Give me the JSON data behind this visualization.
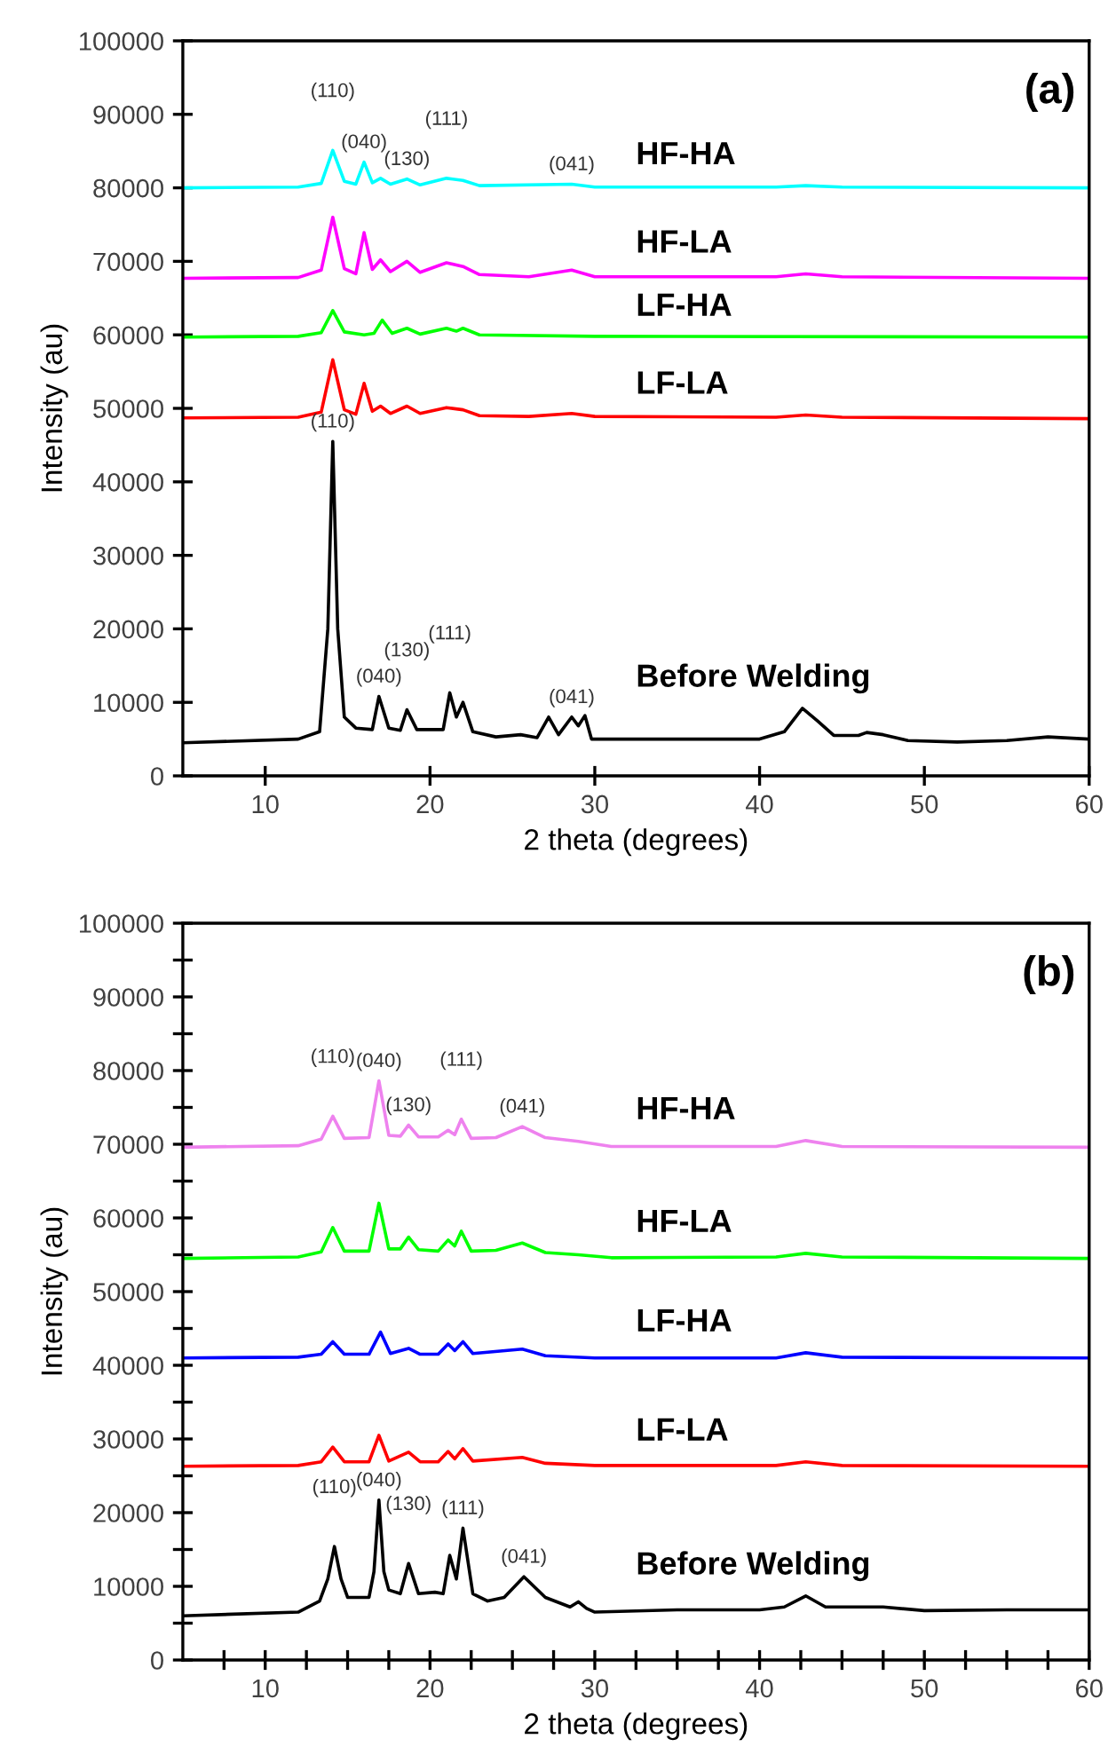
{
  "chart_data": [
    {
      "type": "line",
      "title": "(a)",
      "xlabel": "2 theta (degrees)",
      "ylabel": "Intensity (au)",
      "xlim": [
        5,
        60
      ],
      "ylim": [
        0,
        100000
      ],
      "xticks": [
        10,
        20,
        30,
        40,
        50,
        60
      ],
      "yticks": [
        0,
        10000,
        20000,
        30000,
        40000,
        50000,
        60000,
        70000,
        80000,
        90000,
        100000
      ],
      "grid": false,
      "legend": false,
      "marker": "none",
      "line_style": "solid",
      "series": [
        {
          "name": "HF-HA",
          "color": "#00ffff",
          "x": [
            5,
            12,
            13.4,
            14.1,
            14.8,
            15.5,
            16.0,
            16.5,
            17.0,
            17.6,
            18.6,
            19.4,
            21.0,
            22.0,
            23.0,
            28.6,
            30,
            41,
            42.8,
            45,
            60
          ],
          "values": [
            80000,
            80100,
            80600,
            85100,
            80900,
            80500,
            83500,
            80700,
            81300,
            80500,
            81200,
            80400,
            81300,
            81000,
            80300,
            80500,
            80100,
            80100,
            80300,
            80100,
            80000
          ]
        },
        {
          "name": "HF-LA",
          "color": "#ff00ff",
          "x": [
            5,
            12,
            13.4,
            14.1,
            14.8,
            15.5,
            16.0,
            16.5,
            17.0,
            17.6,
            18.6,
            19.4,
            21.0,
            22.0,
            23.0,
            26,
            28.6,
            30,
            41,
            42.8,
            45,
            60
          ],
          "values": [
            67700,
            67800,
            68800,
            76000,
            69000,
            68300,
            73900,
            68900,
            70200,
            68600,
            70000,
            68500,
            69800,
            69300,
            68200,
            67900,
            68800,
            67900,
            67900,
            68300,
            67900,
            67700
          ]
        },
        {
          "name": "LF-HA",
          "color": "#00ff00",
          "x": [
            5,
            12,
            13.4,
            14.1,
            14.8,
            16.0,
            16.6,
            17.1,
            17.7,
            18.6,
            19.4,
            21.0,
            21.6,
            22.0,
            23.0,
            30,
            60
          ],
          "values": [
            59700,
            59800,
            60300,
            63300,
            60400,
            60000,
            60200,
            62000,
            60200,
            60900,
            60100,
            60900,
            60500,
            60900,
            60000,
            59800,
            59700
          ]
        },
        {
          "name": "LF-LA",
          "color": "#ff0000",
          "x": [
            5,
            12,
            13.4,
            14.1,
            14.8,
            15.5,
            16.0,
            16.5,
            17.0,
            17.6,
            18.6,
            19.4,
            21.0,
            22.0,
            23.0,
            26,
            28.6,
            30,
            41,
            42.8,
            45,
            60
          ],
          "values": [
            48700,
            48800,
            49500,
            56600,
            49800,
            49200,
            53400,
            49600,
            50300,
            49300,
            50300,
            49300,
            50100,
            49800,
            49000,
            48900,
            49300,
            48900,
            48800,
            49100,
            48800,
            48600
          ]
        },
        {
          "name": "Before Welding",
          "color": "#000000",
          "x": [
            5,
            12,
            13.3,
            13.8,
            14.1,
            14.4,
            14.8,
            15.5,
            16.5,
            16.9,
            17.5,
            18.2,
            18.6,
            19.2,
            20.8,
            21.2,
            21.6,
            22.0,
            22.6,
            24,
            25.5,
            26.5,
            27.2,
            27.8,
            28.6,
            29.0,
            29.4,
            29.8,
            35,
            40,
            41.5,
            42.6,
            43.5,
            44.5,
            46,
            46.5,
            47.5,
            49,
            52,
            55,
            57.5,
            60
          ],
          "values": [
            4500,
            5000,
            6000,
            20000,
            45500,
            20000,
            8000,
            6500,
            6300,
            10800,
            6500,
            6200,
            9000,
            6300,
            6300,
            11300,
            8000,
            10000,
            6000,
            5300,
            5600,
            5200,
            8000,
            5600,
            8000,
            6800,
            8200,
            5000,
            5000,
            5000,
            6000,
            9200,
            7500,
            5500,
            5500,
            5900,
            5600,
            4800,
            4600,
            4800,
            5300,
            5000
          ]
        }
      ],
      "annotations": [
        {
          "text": "(040)",
          "x": 16.0,
          "y": 83500
        },
        {
          "text": "(110)",
          "x": 14.1,
          "y": 85100
        },
        {
          "text": "(130)",
          "x": 18.6,
          "y": 81200
        },
        {
          "text": "(111)",
          "x": 21.0,
          "y": 81300
        },
        {
          "text": "(041)",
          "x": 28.6,
          "y": 80500
        },
        {
          "text": "(040)",
          "x": 16.9,
          "y": 10800
        },
        {
          "text": "(130)",
          "x": 18.6,
          "y": 9000
        },
        {
          "text": "(110)",
          "x": 14.1,
          "y": 45500
        },
        {
          "text": "(111)",
          "x": 21.2,
          "y": 11300
        },
        {
          "text": "(041)",
          "x": 28.6,
          "y": 8000
        }
      ]
    },
    {
      "type": "line",
      "title": "(b)",
      "xlabel": "2 theta (degrees)",
      "ylabel": "Intensity (au)",
      "xlim": [
        5,
        60
      ],
      "ylim": [
        0,
        100000
      ],
      "xticks": [
        {
          "value": 7.5,
          "label": null
        },
        10,
        {
          "value": 12.5,
          "label": null
        },
        {
          "value": 15,
          "label": null
        },
        {
          "value": 17.5,
          "label": null
        },
        20,
        {
          "value": 22.5,
          "label": null
        },
        {
          "value": 25,
          "label": null
        },
        {
          "value": 27.5,
          "label": null
        },
        30,
        {
          "value": 32.5,
          "label": null
        },
        {
          "value": 35,
          "label": null
        },
        {
          "value": 37.5,
          "label": null
        },
        40,
        {
          "value": 42.5,
          "label": null
        },
        {
          "value": 45,
          "label": null
        },
        {
          "value": 47.5,
          "label": null
        },
        50,
        {
          "value": 52.5,
          "label": null
        },
        {
          "value": 55,
          "label": null
        },
        {
          "value": 57.5,
          "label": null
        },
        60
      ],
      "yticks": [
        0,
        {
          "value": 5000,
          "label": null
        },
        10000,
        {
          "value": 15000,
          "label": null
        },
        20000,
        {
          "value": 25000,
          "label": null
        },
        30000,
        {
          "value": 35000,
          "label": null
        },
        40000,
        {
          "value": 45000,
          "label": null
        },
        50000,
        {
          "value": 55000,
          "label": null
        },
        60000,
        {
          "value": 65000,
          "label": null
        },
        70000,
        {
          "value": 75000,
          "label": null
        },
        80000,
        {
          "value": 85000,
          "label": null
        },
        90000,
        {
          "value": 95000,
          "label": null
        },
        100000
      ],
      "grid": false,
      "legend": false,
      "marker": "none",
      "line_style": "solid",
      "series": [
        {
          "name": "HF-HA",
          "color": "#ee82ee",
          "x": [
            5,
            12,
            13.4,
            14.1,
            14.8,
            16.3,
            16.9,
            17.5,
            18.2,
            18.7,
            19.3,
            20.5,
            21.1,
            21.5,
            21.9,
            22.5,
            24,
            25.6,
            27,
            29,
            31,
            41,
            42.8,
            45,
            60
          ],
          "values": [
            69600,
            69800,
            70700,
            73800,
            70800,
            70900,
            78600,
            71200,
            71100,
            72600,
            71000,
            71000,
            71900,
            71300,
            73400,
            70800,
            70900,
            72400,
            70900,
            70400,
            69700,
            69700,
            70500,
            69700,
            69600
          ]
        },
        {
          "name": "HF-LA",
          "color": "#00ff00",
          "x": [
            5,
            12,
            13.4,
            14.1,
            14.8,
            16.3,
            16.9,
            17.5,
            18.2,
            18.7,
            19.3,
            20.5,
            21.1,
            21.5,
            21.9,
            22.5,
            24,
            25.6,
            27,
            29,
            31,
            41,
            42.8,
            45,
            60
          ],
          "values": [
            54500,
            54700,
            55400,
            58700,
            55500,
            55500,
            62000,
            55800,
            55800,
            57400,
            55700,
            55500,
            57000,
            56200,
            58200,
            55500,
            55600,
            56600,
            55300,
            55000,
            54600,
            54700,
            55200,
            54700,
            54500
          ]
        },
        {
          "name": "LF-HA",
          "color": "#0000ff",
          "x": [
            5,
            12,
            13.4,
            14.1,
            14.8,
            16.3,
            17.0,
            17.6,
            18.7,
            19.4,
            20.5,
            21.1,
            21.5,
            22.0,
            22.6,
            25.6,
            27,
            30,
            41,
            42.8,
            45,
            60
          ],
          "values": [
            41000,
            41100,
            41500,
            43200,
            41500,
            41500,
            44500,
            41600,
            42300,
            41500,
            41500,
            42900,
            42000,
            43200,
            41600,
            42200,
            41300,
            41000,
            41000,
            41700,
            41100,
            41000
          ]
        },
        {
          "name": "LF-LA",
          "color": "#ff0000",
          "x": [
            5,
            12,
            13.4,
            14.1,
            14.8,
            16.3,
            16.9,
            17.5,
            18.7,
            19.4,
            20.5,
            21.1,
            21.5,
            22.0,
            22.6,
            25.6,
            27,
            30,
            41,
            42.8,
            45,
            60
          ],
          "values": [
            26300,
            26400,
            26900,
            28900,
            26900,
            26900,
            30500,
            27000,
            28200,
            26900,
            26900,
            28300,
            27300,
            28700,
            27000,
            27500,
            26700,
            26400,
            26400,
            26900,
            26400,
            26300
          ]
        },
        {
          "name": "Before Welding",
          "color": "#000000",
          "x": [
            5,
            12,
            13.3,
            13.8,
            14.2,
            14.6,
            15.0,
            16.3,
            16.6,
            16.9,
            17.2,
            17.5,
            18.2,
            18.7,
            19.3,
            20.3,
            20.8,
            21.2,
            21.6,
            22.0,
            22.6,
            23.5,
            24.5,
            25.7,
            27,
            28.5,
            29.0,
            29.5,
            30,
            35,
            40,
            41.5,
            42.8,
            44,
            47.5,
            50,
            55,
            60
          ],
          "values": [
            6000,
            6500,
            8000,
            11000,
            15400,
            11000,
            8500,
            8500,
            12000,
            21700,
            12000,
            9500,
            9000,
            13100,
            9000,
            9200,
            9000,
            14200,
            11000,
            17900,
            9000,
            8000,
            8500,
            11300,
            8500,
            7200,
            7900,
            7000,
            6500,
            6800,
            6800,
            7200,
            8700,
            7200,
            7200,
            6700,
            6800,
            6800
          ]
        }
      ],
      "annotations": [
        {
          "text": "(040)",
          "x": 16.9,
          "y": 78600
        },
        {
          "text": "(110)",
          "x": 14.1,
          "y": 73800
        },
        {
          "text": "(130)",
          "x": 18.7,
          "y": 72600
        },
        {
          "text": "(111)",
          "x": 21.9,
          "y": 73400
        },
        {
          "text": "(041)",
          "x": 25.6,
          "y": 72400
        },
        {
          "text": "(040)",
          "x": 16.9,
          "y": 21700
        },
        {
          "text": "(110)",
          "x": 14.2,
          "y": 15400
        },
        {
          "text": "(111)",
          "x": 22.0,
          "y": 17900
        },
        {
          "text": "(130)",
          "x": 18.7,
          "y": 13100
        },
        {
          "text": "(041)",
          "x": 25.7,
          "y": 11300
        }
      ]
    }
  ]
}
